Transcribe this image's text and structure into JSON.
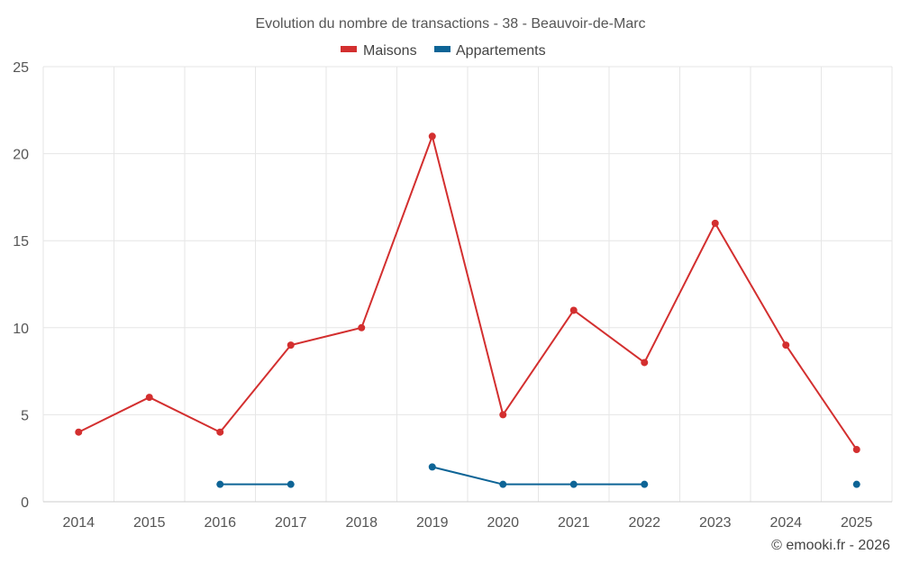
{
  "chart_data": {
    "type": "line",
    "title": "Evolution du nombre de transactions - 38 - Beauvoir-de-Marc",
    "categories": [
      "2014",
      "2015",
      "2016",
      "2017",
      "2018",
      "2019",
      "2020",
      "2021",
      "2022",
      "2023",
      "2024",
      "2025"
    ],
    "series": [
      {
        "name": "Maisons",
        "color": "#d32f2f",
        "values": [
          4,
          6,
          4,
          9,
          10,
          21,
          5,
          11,
          8,
          16,
          9,
          3
        ]
      },
      {
        "name": "Appartements",
        "color": "#0d6496",
        "values": [
          null,
          null,
          1,
          1,
          null,
          2,
          1,
          1,
          1,
          null,
          null,
          1
        ]
      }
    ],
    "ylim": [
      0,
      25
    ],
    "yticks": [
      0,
      5,
      10,
      15,
      20,
      25
    ],
    "xlabel": "",
    "ylabel": "",
    "grid": true,
    "legend": "top-center"
  },
  "credit": "© emooki.fr - 2026"
}
